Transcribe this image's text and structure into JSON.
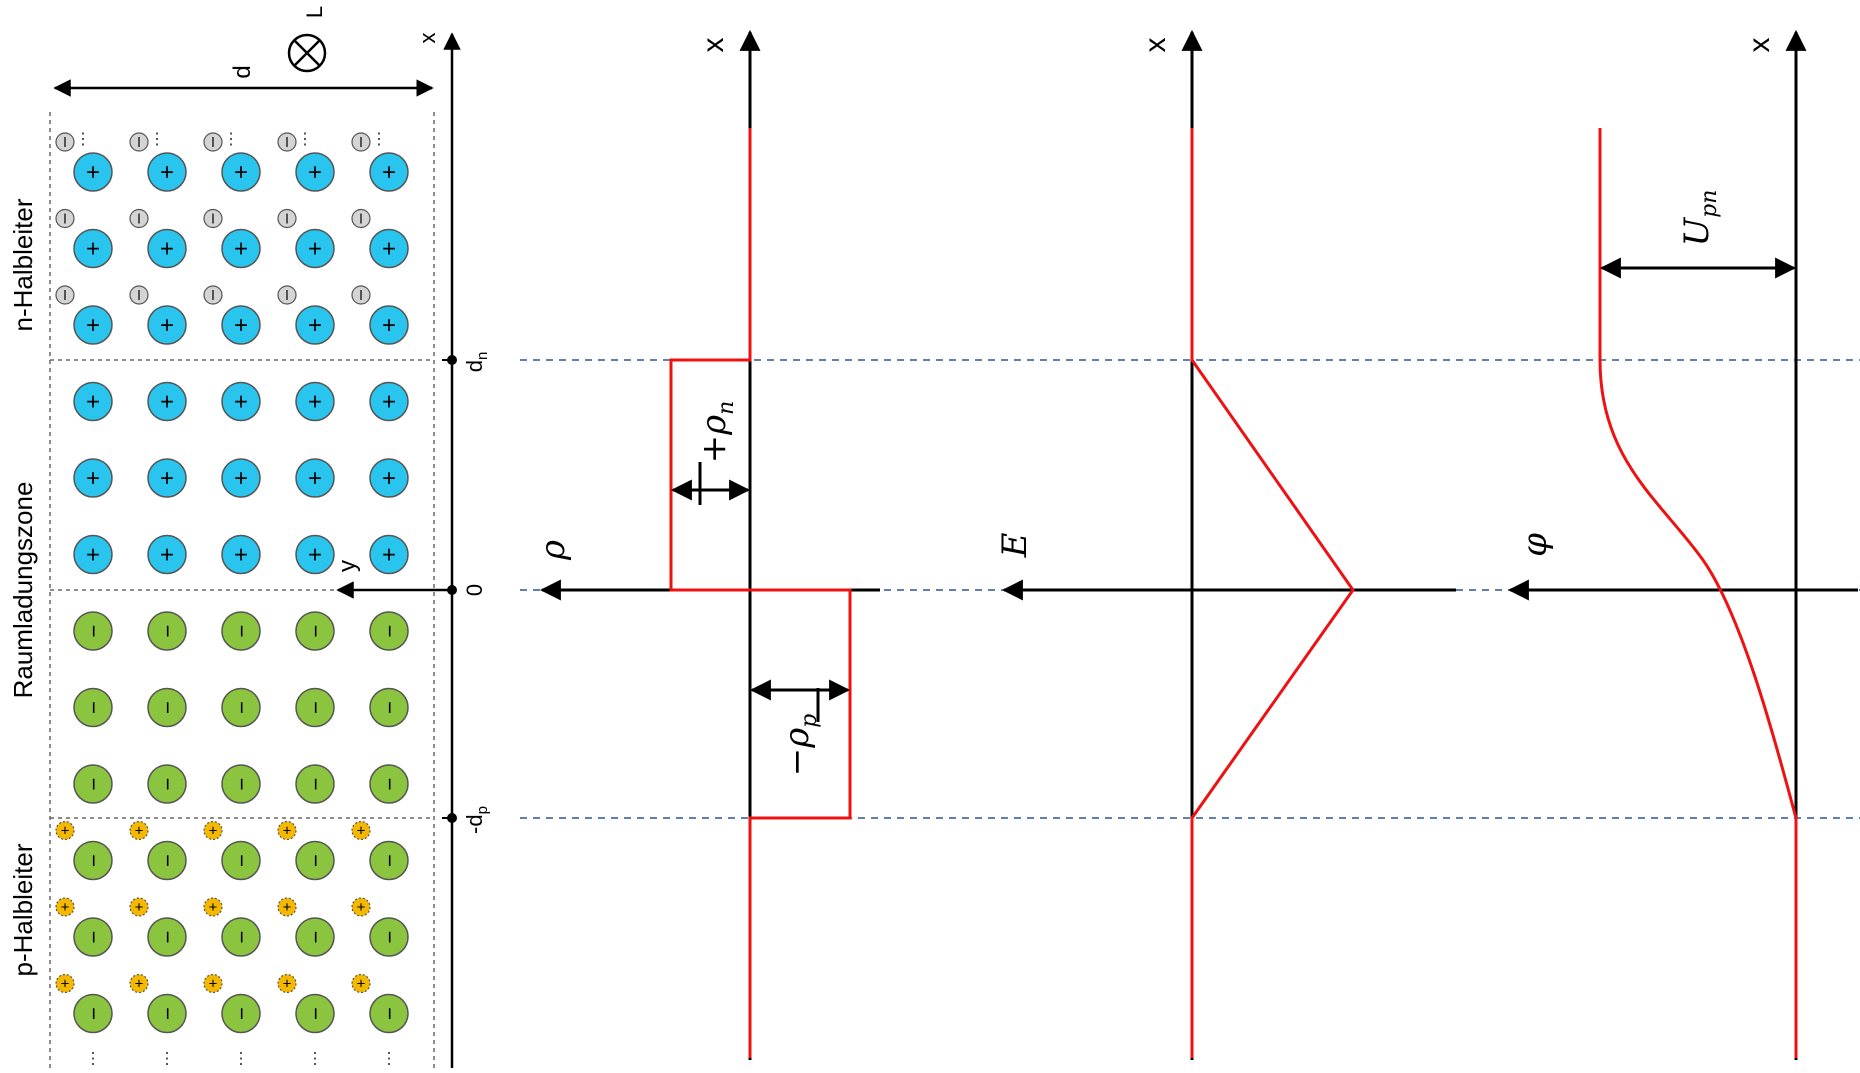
{
  "colors": {
    "donor": "#29c5ee",
    "acceptor": "#8bc53f",
    "electron": "#d4d4d4",
    "hole": "#f5b800",
    "curve": "#ee1111",
    "guide": "#2e5597",
    "axis": "#000000"
  },
  "labels": {
    "n_region": "n-Halbleiter",
    "space_charge": "Raumladungszone",
    "p_region": "p-Halbleiter",
    "d": "d",
    "L": "L",
    "x_small": "x",
    "y": "y",
    "dn": "d",
    "dn_sub": "n",
    "zero": "0",
    "dp": "-d",
    "dp_sub": "p",
    "axis_x": "x",
    "rho": "ρ",
    "E": "E",
    "phi": "φ",
    "plus_rho_n": "+ρ",
    "plus_rho_n_sub": "n",
    "minus_rho_p": "−ρ",
    "minus_rho_p_sub": "p",
    "U_pn": "U",
    "U_pn_sub": "pn",
    "plus_sign": "+",
    "minus_sign": "−",
    "dots": "⋮"
  },
  "lattice": {
    "columns": 5,
    "rows": [
      {
        "ion": "donor",
        "carrier": "electron"
      },
      {
        "ion": "donor",
        "carrier": "electron"
      },
      {
        "ion": "donor",
        "carrier": "electron"
      },
      {
        "ion": "donor",
        "carrier": "none"
      },
      {
        "ion": "donor",
        "carrier": "none"
      },
      {
        "ion": "donor",
        "carrier": "none"
      },
      {
        "ion": "acceptor",
        "carrier": "none"
      },
      {
        "ion": "acceptor",
        "carrier": "none"
      },
      {
        "ion": "acceptor",
        "carrier": "none"
      },
      {
        "ion": "acceptor",
        "carrier": "hole"
      },
      {
        "ion": "acceptor",
        "carrier": "hole"
      },
      {
        "ion": "acceptor",
        "carrier": "hole"
      }
    ]
  }
}
